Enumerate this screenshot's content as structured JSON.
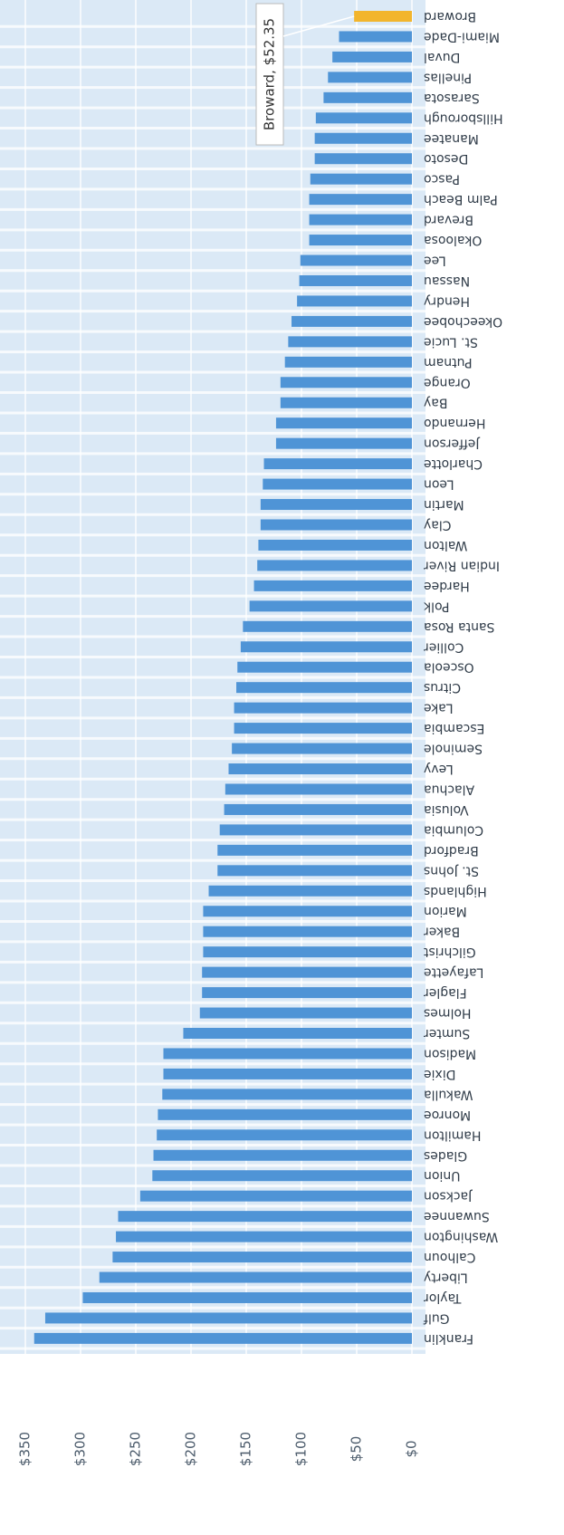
{
  "chart_data": {
    "type": "hbar",
    "categories": [
      "Broward",
      "Miami-Dade",
      "Duval",
      "Pinellas",
      "Sarasota",
      "Hillsborough",
      "Manatee",
      "Desoto",
      "Pasco",
      "Palm Beach",
      "Brevard",
      "Okaloosa",
      "Lee",
      "Nassau",
      "Hendry",
      "Okeechobee",
      "St. Lucie",
      "Putnam",
      "Orange",
      "Bay",
      "Hernando",
      "Jefferson",
      "Charlotte",
      "Leon",
      "Martin",
      "Clay",
      "Walton",
      "Indian River",
      "Hardee",
      "Polk",
      "Santa Rosa",
      "Collier",
      "Osceola",
      "Citrus",
      "Lake",
      "Escambia",
      "Seminole",
      "Levy",
      "Alachua",
      "Volusia",
      "Columbia",
      "Bradford",
      "St. Johns",
      "Highlands",
      "Marion",
      "Baker",
      "Gilchrist",
      "Lafayette",
      "Flagler",
      "Holmes",
      "Sumter",
      "Madison",
      "Dixie",
      "Wakulla",
      "Monroe",
      "Hamilton",
      "Glades",
      "Union",
      "Jackson",
      "Suwannee",
      "Washington",
      "Calhoun",
      "Liberty",
      "Taylor",
      "Gulf",
      "Franklin"
    ],
    "values": [
      52.35,
      66,
      72,
      76,
      80,
      87,
      88,
      88,
      92,
      93,
      93,
      93,
      101,
      102,
      104,
      109,
      112,
      115,
      119,
      119,
      123,
      123,
      134,
      135,
      137,
      137,
      139,
      140,
      143,
      147,
      153,
      155,
      158,
      159,
      161,
      161,
      163,
      166,
      169,
      170,
      174,
      176,
      176,
      184,
      189,
      189,
      189,
      190,
      190,
      192,
      207,
      225,
      225,
      226,
      230,
      231,
      234,
      235,
      246,
      266,
      268,
      271,
      283,
      298,
      332,
      342
    ],
    "color": "#4f94d6",
    "highlight": {
      "category": "Broward",
      "color": "#f2b52d"
    },
    "annotation": "Broward, $52.35",
    "xlim": [
      0,
      350
    ],
    "xticks": [
      {
        "value": 0,
        "label": "$0"
      },
      {
        "value": 50,
        "label": "$50"
      },
      {
        "value": 100,
        "label": "$100"
      },
      {
        "value": 150,
        "label": "$150"
      },
      {
        "value": 200,
        "label": "$200"
      },
      {
        "value": 250,
        "label": "$250"
      },
      {
        "value": 300,
        "label": "$300"
      },
      {
        "value": 350,
        "label": "$350"
      }
    ],
    "grid": true
  }
}
